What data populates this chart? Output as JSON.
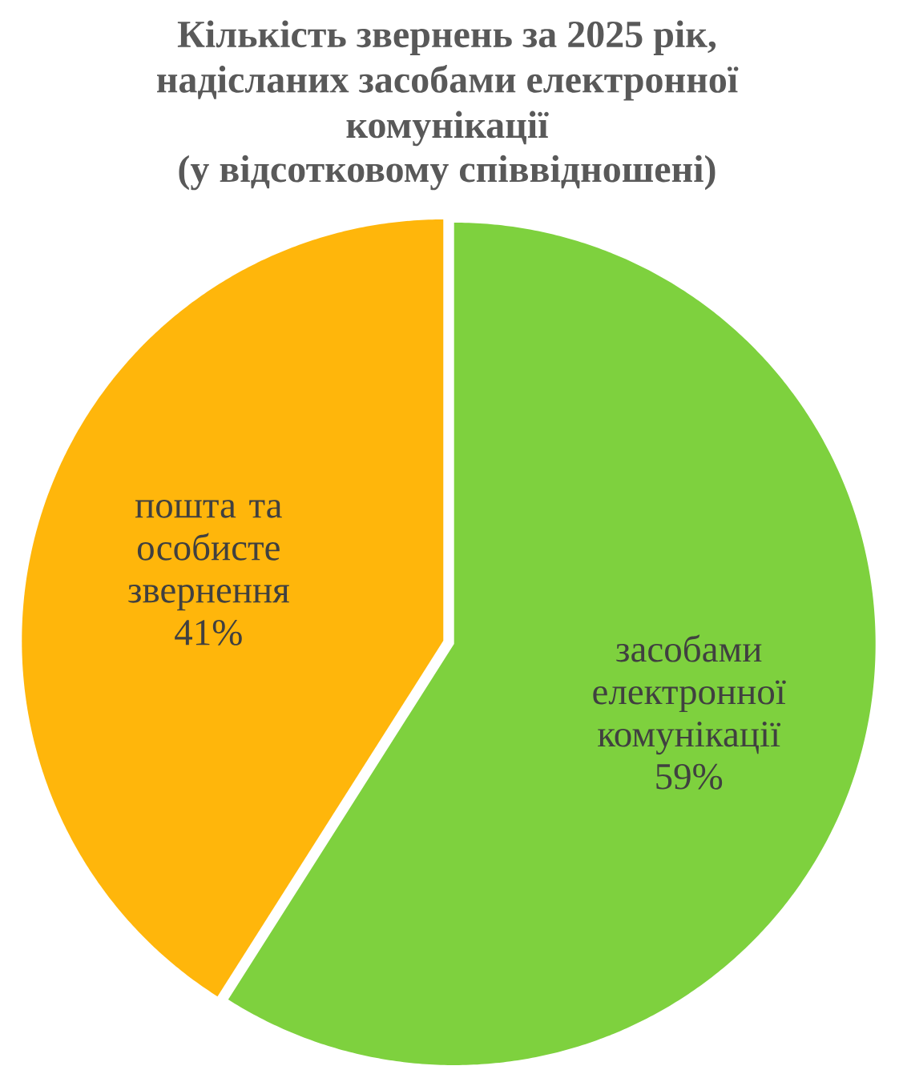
{
  "chart_data": {
    "type": "pie",
    "title": "Кількість звернень за 2025 рік, надісланих засобами електронної комунікації",
    "subtitle": "(у відсотковому співвідношені)",
    "categories": [
      "засобами електронної комунікації",
      "пошта та особисте звернення"
    ],
    "values": [
      59,
      41
    ],
    "colors": [
      "#7ed13e",
      "#ffb60b"
    ],
    "value_labels": [
      "59%",
      "41%"
    ]
  }
}
